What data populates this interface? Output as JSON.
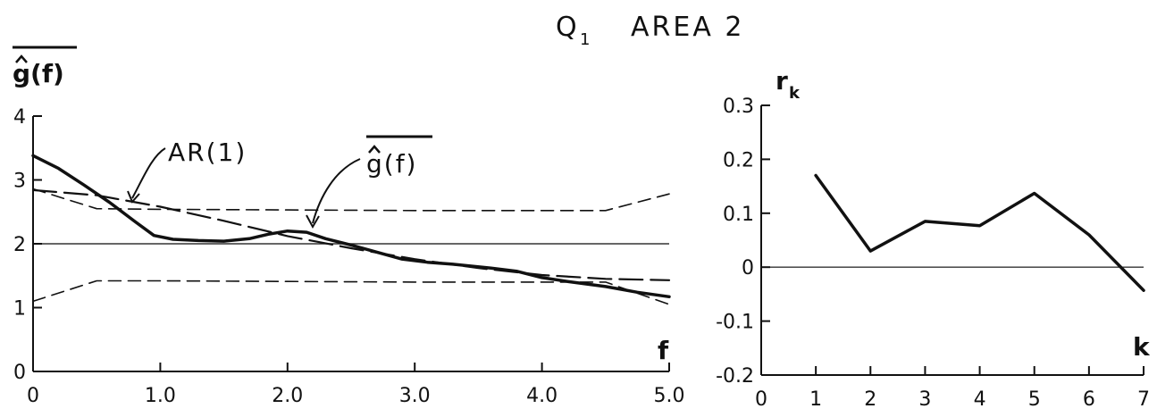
{
  "title": "Q",
  "title_subscript": "1",
  "title_suffix": "AREA 2",
  "chart_data": [
    {
      "type": "line",
      "ylabel": "g(f)",
      "xlabel": "f",
      "xlim": [
        0,
        5.0
      ],
      "ylim": [
        0,
        4
      ],
      "x_ticks": [
        0,
        1.0,
        2.0,
        3.0,
        4.0,
        5.0
      ],
      "x_tick_labels": [
        "0",
        "1.0",
        "2.0",
        "3.0",
        "4.0",
        "5.0"
      ],
      "y_ticks": [
        0,
        1,
        2,
        3,
        4
      ],
      "y_tick_labels": [
        "0",
        "1",
        "2",
        "3",
        "4"
      ],
      "reference_line": 2,
      "annotations": [
        "AR(1)",
        "g(f)"
      ],
      "series": [
        {
          "name": "g(f)",
          "style": "solid-thick",
          "x": [
            0,
            0.2,
            0.4,
            0.6,
            0.8,
            0.95,
            1.1,
            1.3,
            1.5,
            1.7,
            1.85,
            2.0,
            2.15,
            2.3,
            2.5,
            2.7,
            2.9,
            3.1,
            3.3,
            3.6,
            3.8,
            4.0,
            4.2,
            4.5,
            4.75,
            5.0
          ],
          "y": [
            3.38,
            3.18,
            2.92,
            2.65,
            2.35,
            2.13,
            2.07,
            2.05,
            2.04,
            2.08,
            2.15,
            2.2,
            2.18,
            2.08,
            1.98,
            1.87,
            1.76,
            1.71,
            1.68,
            1.62,
            1.57,
            1.47,
            1.41,
            1.33,
            1.24,
            1.17
          ]
        },
        {
          "name": "AR(1)",
          "style": "long-dash",
          "x": [
            0,
            0.5,
            1.0,
            1.5,
            2.0,
            2.5,
            3.0,
            3.5,
            4.0,
            4.5,
            5.0
          ],
          "y": [
            2.84,
            2.76,
            2.58,
            2.36,
            2.12,
            1.93,
            1.76,
            1.62,
            1.51,
            1.45,
            1.43
          ]
        },
        {
          "name": "upper-band",
          "style": "short-dash",
          "x": [
            0,
            0.5,
            1.0,
            2.0,
            3.0,
            4.0,
            4.5,
            5.0
          ],
          "y": [
            2.86,
            2.55,
            2.54,
            2.53,
            2.52,
            2.52,
            2.52,
            2.78
          ]
        },
        {
          "name": "lower-band",
          "style": "short-dash",
          "x": [
            0,
            0.5,
            1.0,
            2.0,
            3.0,
            4.0,
            4.5,
            5.0
          ],
          "y": [
            1.1,
            1.42,
            1.42,
            1.41,
            1.4,
            1.4,
            1.4,
            1.05
          ]
        }
      ]
    },
    {
      "type": "line",
      "ylabel": "r",
      "ylabel_subscript": "k",
      "xlabel": "k",
      "xlim": [
        0,
        7
      ],
      "ylim": [
        -0.2,
        0.3
      ],
      "x_ticks": [
        0,
        1,
        2,
        3,
        4,
        5,
        6,
        7
      ],
      "x_tick_labels": [
        "0",
        "1",
        "2",
        "3",
        "4",
        "5",
        "6",
        "7"
      ],
      "y_ticks": [
        -0.2,
        -0.1,
        0,
        0.1,
        0.2,
        0.3
      ],
      "y_tick_labels": [
        "-0.2",
        "-0.1",
        "0",
        "0.1",
        "0.2",
        "0.3"
      ],
      "reference_line": 0,
      "series": [
        {
          "name": "r_k",
          "style": "solid-thick",
          "x": [
            1,
            2,
            3,
            4,
            5,
            6,
            7
          ],
          "y": [
            0.17,
            0.03,
            0.085,
            0.077,
            0.137,
            0.06,
            -0.043
          ]
        }
      ]
    }
  ]
}
